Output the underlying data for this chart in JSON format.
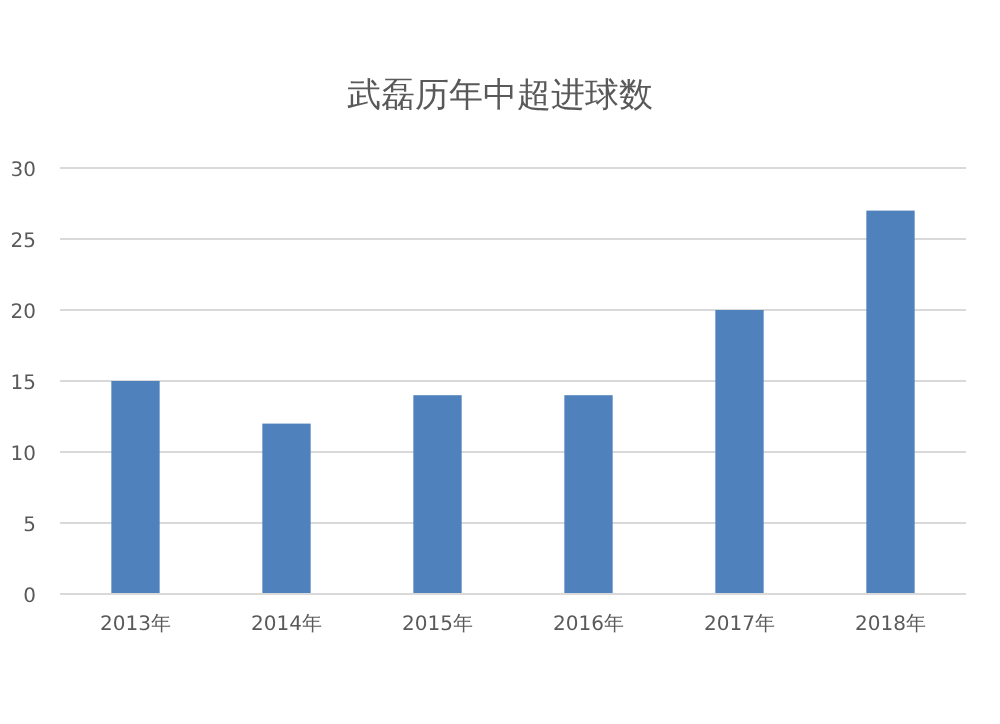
{
  "chart_data": {
    "type": "bar",
    "title": "武磊历年中超进球数",
    "categories": [
      "2013年",
      "2014年",
      "2015年",
      "2016年",
      "2017年",
      "2018年"
    ],
    "values": [
      15,
      12,
      14,
      14,
      20,
      27
    ],
    "color": "#4f81bd",
    "ylim": [
      0,
      30
    ],
    "yticks": [
      0,
      5,
      10,
      15,
      20,
      25,
      30
    ],
    "grid": "y"
  }
}
